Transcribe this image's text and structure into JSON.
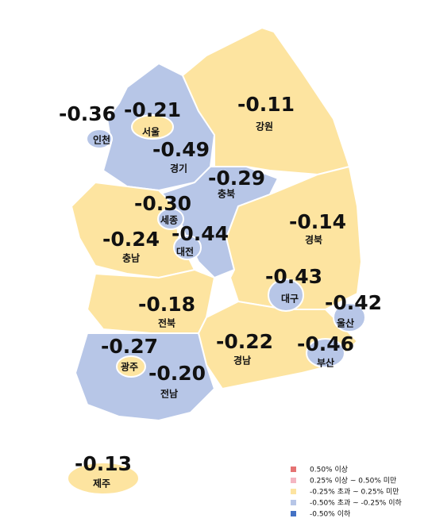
{
  "regions": [
    {
      "name": "인천",
      "value": -0.36,
      "color": "#b7c6e7"
    },
    {
      "name": "서울",
      "value": -0.21,
      "color": "#fde4a0"
    },
    {
      "name": "경기",
      "value": -0.49,
      "color": "#b7c6e7"
    },
    {
      "name": "강원",
      "value": -0.11,
      "color": "#fde4a0"
    },
    {
      "name": "충북",
      "value": -0.29,
      "color": "#b7c6e7"
    },
    {
      "name": "세종",
      "value": -0.3,
      "value_label": "-0.30",
      "color": "#b7c6e7"
    },
    {
      "name": "대전",
      "value": -0.44,
      "color": "#b7c6e7"
    },
    {
      "name": "충남",
      "value": -0.24,
      "color": "#fde4a0"
    },
    {
      "name": "경북",
      "value": -0.14,
      "color": "#fde4a0"
    },
    {
      "name": "대구",
      "value": -0.43,
      "color": "#b7c6e7"
    },
    {
      "name": "울산",
      "value": -0.42,
      "color": "#b7c6e7"
    },
    {
      "name": "전북",
      "value": -0.18,
      "color": "#fde4a0"
    },
    {
      "name": "경남",
      "value": -0.22,
      "color": "#fde4a0"
    },
    {
      "name": "부산",
      "value": -0.46,
      "color": "#b7c6e7"
    },
    {
      "name": "광주",
      "value": -0.27,
      "color": "#b7c6e7"
    },
    {
      "name": "전남",
      "value": -0.2,
      "value_label": "-0.20",
      "color": "#fde4a0"
    },
    {
      "name": "제주",
      "value": -0.13,
      "color": "#fde4a0"
    }
  ],
  "legend": [
    {
      "label": "0.50% 이상",
      "color": "#e57373"
    },
    {
      "label": "0.25% 이상 ~ 0.50% 미만",
      "color": "#f4b6c2"
    },
    {
      "label": "-0.25% 초과 ~ 0.25% 미만",
      "color": "#fde4a0"
    },
    {
      "label": "-0.50% 초과 ~ -0.25% 이하",
      "color": "#b7c6e7"
    },
    {
      "label": "-0.50% 이하",
      "color": "#4472c4"
    }
  ]
}
